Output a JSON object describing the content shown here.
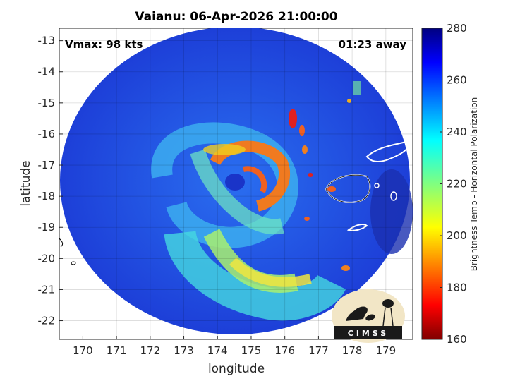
{
  "map": {
    "title": "Vaianu: 06-Apr-2026 21:00:00",
    "vmax_label": "Vmax: 98 kts",
    "away_label": "01:23 away",
    "xlabel": "longitude",
    "ylabel": "latitude",
    "lon_ticks": [
      "170",
      "171",
      "172",
      "173",
      "174",
      "175",
      "176",
      "177",
      "178",
      "179"
    ],
    "lat_ticks": [
      "-13",
      "-14",
      "-15",
      "-16",
      "-17",
      "-18",
      "-19",
      "-20",
      "-21",
      "-22"
    ],
    "lon_range": [
      169.3,
      179.8
    ],
    "lat_range": [
      -22.6,
      -12.6
    ],
    "grid": true,
    "swath_color_low": "#1d3fd8",
    "coastline_color": "#ffffff"
  },
  "colorbar": {
    "label": "Brightness Temp - Horizontal Polarization",
    "ticks": [
      "280",
      "260",
      "240",
      "220",
      "200",
      "180",
      "160"
    ],
    "range": [
      160,
      280
    ],
    "colormap": "jet"
  },
  "logo": {
    "text": "CIMSS"
  }
}
